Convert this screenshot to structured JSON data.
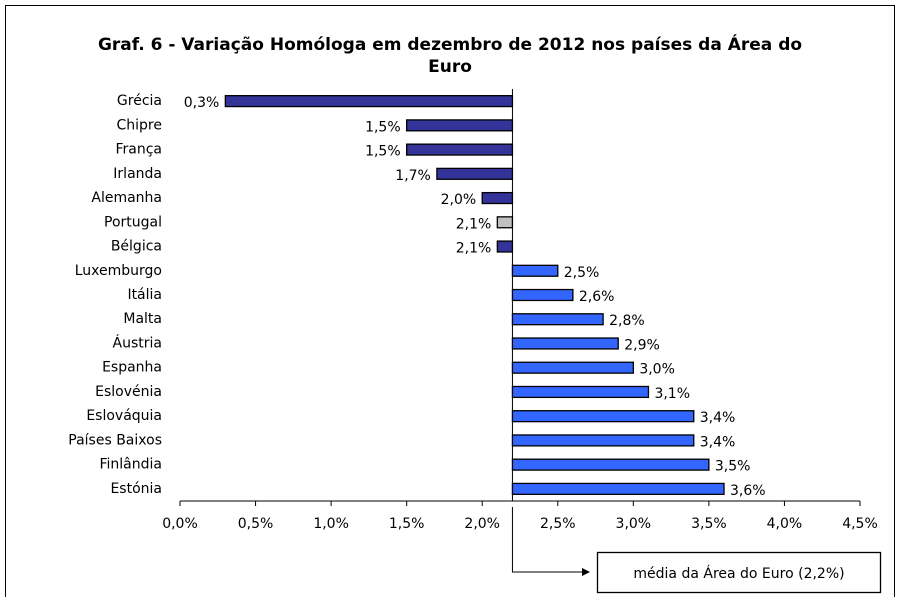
{
  "chart_data": {
    "type": "bar",
    "orientation": "horizontal",
    "title": "Graf. 6 - Variação Homóloga em dezembro de 2012 nos países da Área do Euro",
    "categories": [
      "Grécia",
      "Chipre",
      "França",
      "Irlanda",
      "Alemanha",
      "Portugal",
      "Bélgica",
      "Luxemburgo",
      "Itália",
      "Malta",
      "Áustria",
      "Espanha",
      "Eslovénia",
      "Eslováquia",
      "Países Baixos",
      "Finlândia",
      "Estónia"
    ],
    "values": [
      0.3,
      1.5,
      1.5,
      1.7,
      2.0,
      2.1,
      2.1,
      2.5,
      2.6,
      2.8,
      2.9,
      3.0,
      3.1,
      3.4,
      3.4,
      3.5,
      3.6
    ],
    "value_labels": [
      "0,3%",
      "1,5%",
      "1,5%",
      "1,7%",
      "2,0%",
      "2,1%",
      "2,1%",
      "2,5%",
      "2,6%",
      "2,8%",
      "2,9%",
      "3,0%",
      "3,1%",
      "3,4%",
      "3,4%",
      "3,5%",
      "3,6%"
    ],
    "colors": [
      "#333399",
      "#333399",
      "#333399",
      "#333399",
      "#333399",
      "#c0c0c0",
      "#333399",
      "#3366ff",
      "#3366ff",
      "#3366ff",
      "#3366ff",
      "#3366ff",
      "#3366ff",
      "#3366ff",
      "#3366ff",
      "#3366ff",
      "#3366ff"
    ],
    "baseline": 2.2,
    "annotation": "média da Área do Euro (2,2%)",
    "xlim": [
      0,
      4.5
    ],
    "xticks": [
      {
        "value": 0,
        "label": "0,0%"
      },
      {
        "value": 0.5,
        "label": "0,5%"
      },
      {
        "value": 1,
        "label": "1,0%"
      },
      {
        "value": 1.5,
        "label": "1,5%"
      },
      {
        "value": 2,
        "label": "2,0%"
      },
      {
        "value": 2.5,
        "label": "2,5%"
      },
      {
        "value": 3,
        "label": "3,0%"
      },
      {
        "value": 3.5,
        "label": "3,5%"
      },
      {
        "value": 4,
        "label": "4,0%"
      },
      {
        "value": 4.5,
        "label": "4,5%"
      }
    ]
  }
}
